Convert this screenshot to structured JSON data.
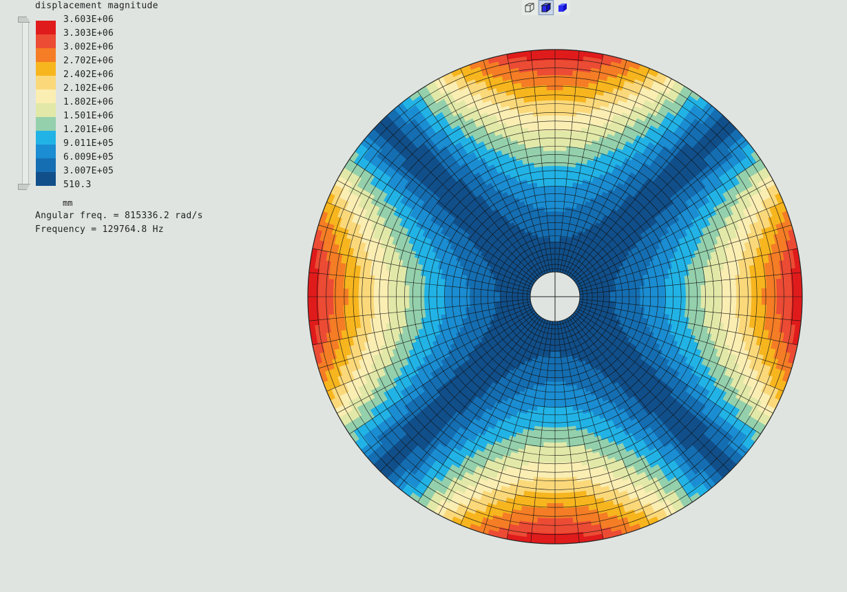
{
  "legend": {
    "title": "displacement magnitude",
    "unit": "mm",
    "levels": [
      {
        "label": "3.603E+06",
        "color": "#e01b1b"
      },
      {
        "label": "3.303E+06",
        "color": "#ec4b34"
      },
      {
        "label": "3.002E+06",
        "color": "#f57d25"
      },
      {
        "label": "2.702E+06",
        "color": "#f7b51e"
      },
      {
        "label": "2.402E+06",
        "color": "#fbd97a"
      },
      {
        "label": "2.102E+06",
        "color": "#fbeeb3"
      },
      {
        "label": "1.802E+06",
        "color": "#e2e9a8"
      },
      {
        "label": "1.501E+06",
        "color": "#94d0ac"
      },
      {
        "label": "1.201E+06",
        "color": "#22b3e6"
      },
      {
        "label": "9.011E+05",
        "color": "#1b8dd2"
      },
      {
        "label": "6.009E+05",
        "color": "#156eb2"
      },
      {
        "label": "3.007E+05",
        "color": "#114f8a"
      },
      {
        "label": "510.3",
        "color": null
      }
    ]
  },
  "info": {
    "angular_freq": "Angular freq. = 815336.2 rad/s",
    "frequency": "Frequency = 129764.8 Hz"
  },
  "toolbar": {
    "buttons": [
      {
        "icon": "wireframe-cube-icon",
        "active": false
      },
      {
        "icon": "shaded-edges-cube-icon",
        "active": true
      },
      {
        "icon": "shaded-cube-icon",
        "active": false
      }
    ]
  }
}
